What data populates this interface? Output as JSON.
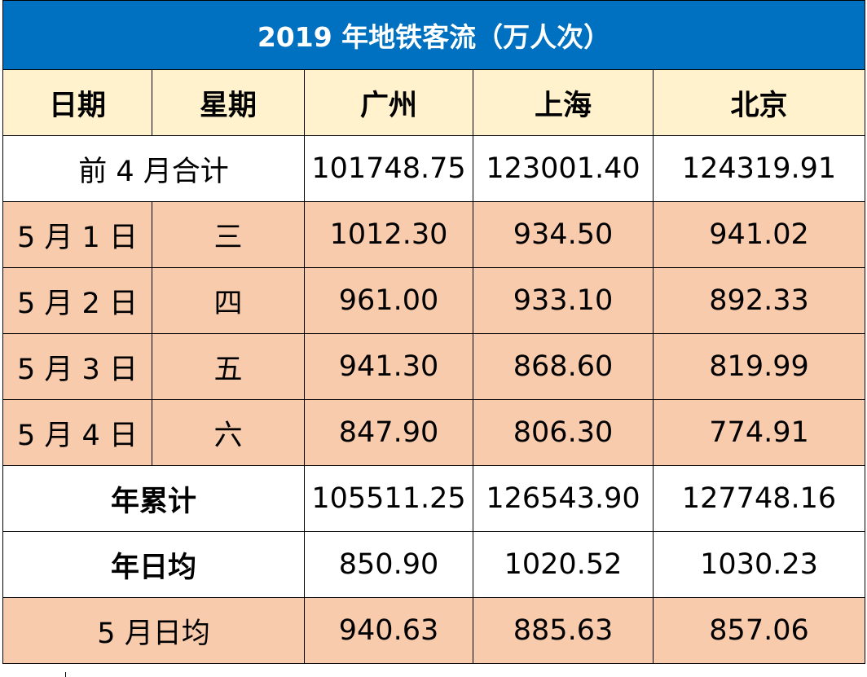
{
  "title": "2019 年地铁客流（万人次）",
  "headers": {
    "date": "日期",
    "weekday": "星期",
    "guangzhou": "广州",
    "shanghai": "上海",
    "beijing": "北京"
  },
  "rows": {
    "before_april": {
      "label": "前 4 月合计",
      "guangzhou": "101748.75",
      "shanghai": "123001.40",
      "beijing": "124319.91"
    },
    "may1": {
      "date": "5 月 1 日",
      "weekday": "三",
      "guangzhou": "1012.30",
      "shanghai": "934.50",
      "beijing": "941.02"
    },
    "may2": {
      "date": "5 月 2 日",
      "weekday": "四",
      "guangzhou": "961.00",
      "shanghai": "933.10",
      "beijing": "892.33"
    },
    "may3": {
      "date": "5 月 3 日",
      "weekday": "五",
      "guangzhou": "941.30",
      "shanghai": "868.60",
      "beijing": "819.99"
    },
    "may4": {
      "date": "5 月 4 日",
      "weekday": "六",
      "guangzhou": "847.90",
      "shanghai": "806.30",
      "beijing": "774.91"
    },
    "year_total": {
      "label": "年累计",
      "guangzhou": "105511.25",
      "shanghai": "126543.90",
      "beijing": "127748.16"
    },
    "year_daily_avg": {
      "label": "年日均",
      "guangzhou": "850.90",
      "shanghai": "1020.52",
      "beijing": "1030.23"
    },
    "may_daily_avg": {
      "label": "5 月日均",
      "guangzhou": "940.63",
      "shanghai": "885.63",
      "beijing": "857.06"
    }
  },
  "colors": {
    "title_bg": "#0070c0",
    "header_bg": "#fff2cc",
    "highlight_bg": "#f8cbad",
    "plain_bg": "#ffffff"
  }
}
